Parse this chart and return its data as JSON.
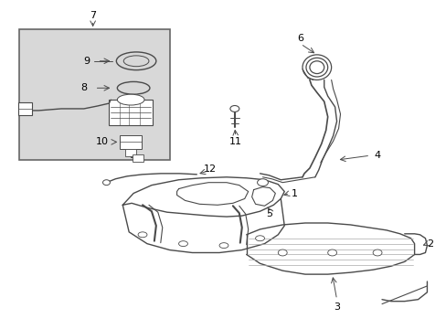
{
  "bg_color": "#ffffff",
  "line_color": "#4a4a4a",
  "label_color": "#000000",
  "inset_bg": "#d8d8d8",
  "inset_border": "#666666",
  "fig_width": 4.89,
  "fig_height": 3.6,
  "dpi": 100
}
